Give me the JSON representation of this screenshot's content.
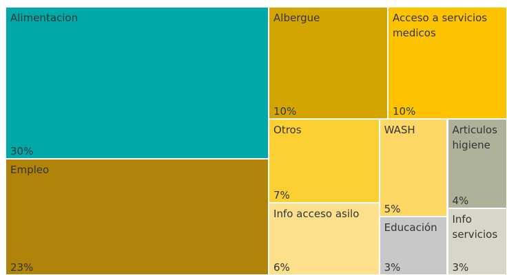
{
  "chart_data": {
    "type": "treemap",
    "categories": [
      "Alimentacion",
      "Empleo",
      "Albergue",
      "Acceso a servicios medicos",
      "Otros",
      "WASH",
      "Articulos higiene",
      "Info acceso asilo",
      "Educación",
      "Info servicios"
    ],
    "values": [
      30,
      23,
      10,
      10,
      7,
      5,
      4,
      6,
      3,
      3
    ],
    "value_labels": [
      "30%",
      "23%",
      "10%",
      "10%",
      "7%",
      "5%",
      "4%",
      "6%",
      "3%",
      "3%"
    ],
    "colors": [
      "#00a8a8",
      "#b08408",
      "#d4a500",
      "#fdc300",
      "#fcd033",
      "#fdd866",
      "#b0b19a",
      "#fee08c",
      "#c8c8c8",
      "#d8d6c8"
    ]
  }
}
